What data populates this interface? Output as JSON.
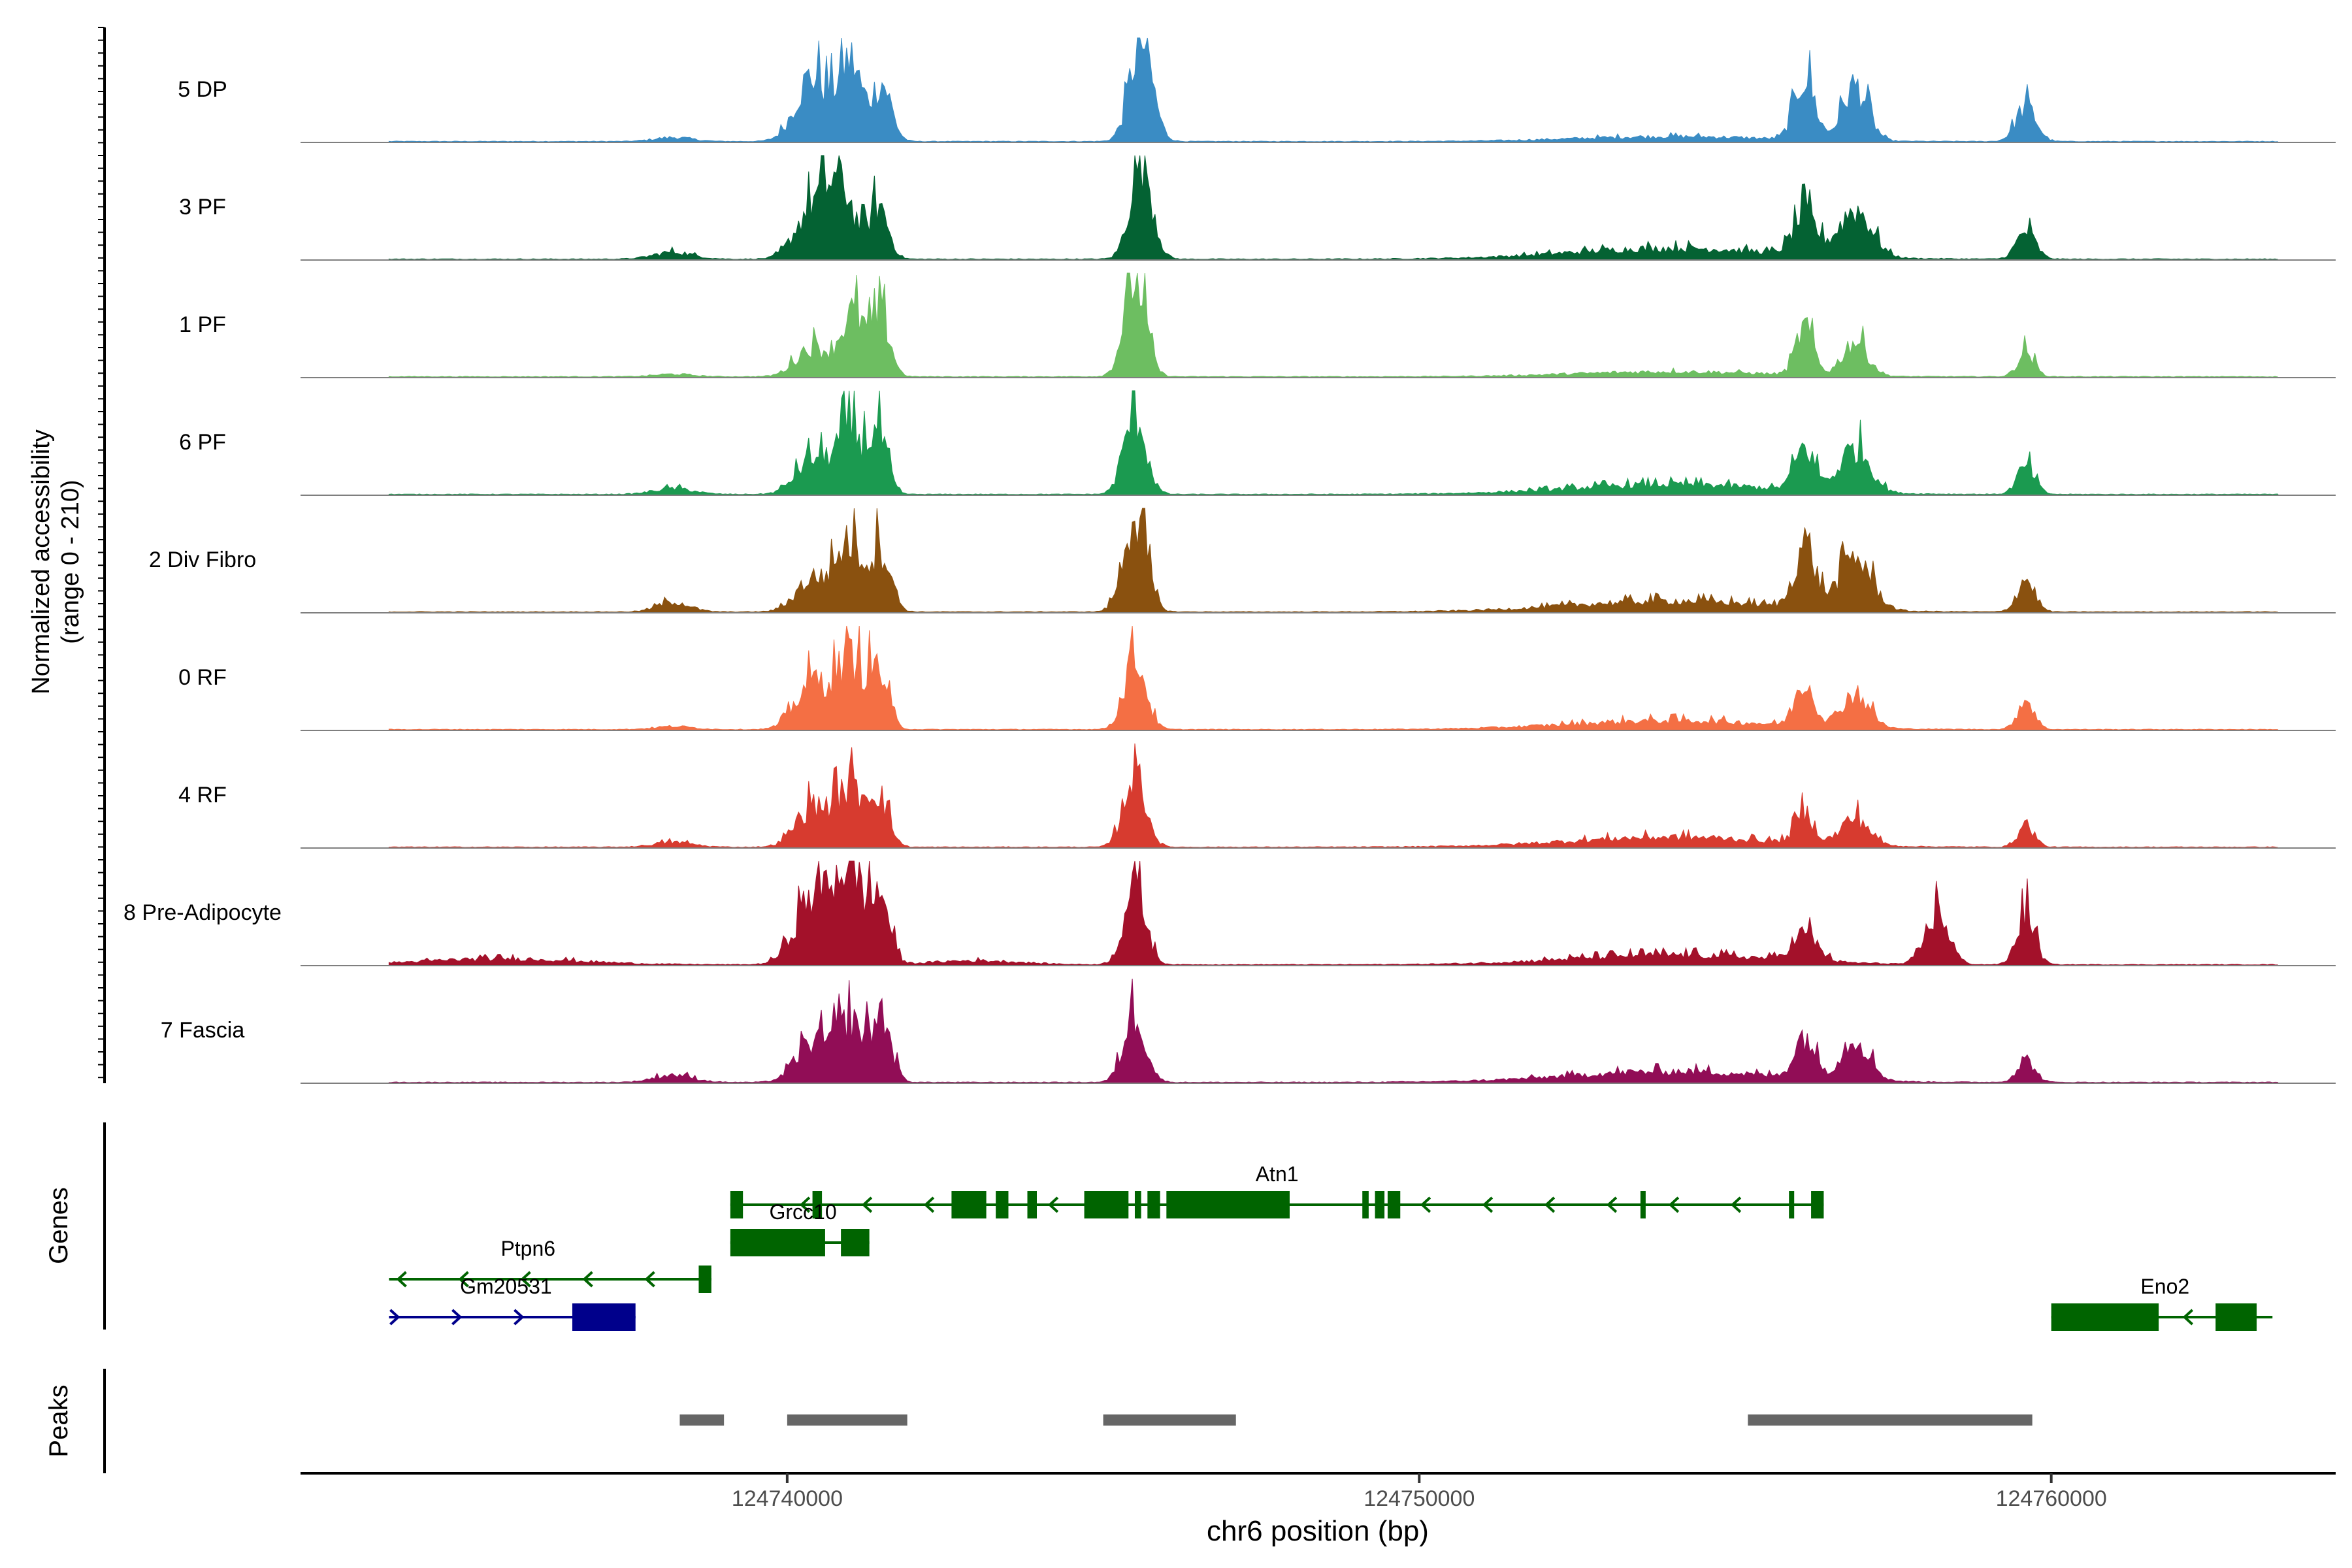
{
  "chart_data": {
    "type": "area",
    "title": "",
    "xlabel": "chr6 position (bp)",
    "ylabel_line1": "Normalized accessibility",
    "ylabel_line2": "(range 0 - 210)",
    "ylim": [
      0,
      210
    ],
    "xlim": [
      124732300,
      124764500
    ],
    "x_ticks": [
      124740000,
      124750000,
      124760000
    ],
    "x_tick_labels": [
      "124740000",
      "124750000",
      "124760000"
    ],
    "series": [
      {
        "name": "5 DP",
        "color": "#3A8CC4",
        "peaks": [
          [
            124740400,
            130,
            260
          ],
          [
            124741000,
            155,
            180
          ],
          [
            124741500,
            115,
            150
          ],
          [
            124745600,
            200,
            180
          ],
          [
            124756100,
            125,
            160
          ],
          [
            124756900,
            110,
            200
          ],
          [
            124759600,
            70,
            160
          ]
        ],
        "background": [
          [
            124738200,
            8,
            300
          ],
          [
            124754000,
            10,
            1500
          ]
        ]
      },
      {
        "name": "3 PF",
        "color": "#046233",
        "peaks": [
          [
            124740400,
            100,
            260
          ],
          [
            124740850,
            135,
            220
          ],
          [
            124741450,
            105,
            150
          ],
          [
            124745600,
            205,
            170
          ],
          [
            124756100,
            80,
            180
          ],
          [
            124756900,
            95,
            260
          ],
          [
            124759600,
            55,
            150
          ]
        ],
        "background": [
          [
            124738200,
            14,
            300
          ],
          [
            124754000,
            22,
            1600
          ]
        ]
      },
      {
        "name": "1 PF",
        "color": "#6DBE61",
        "peaks": [
          [
            124740400,
            60,
            260
          ],
          [
            124741050,
            125,
            200
          ],
          [
            124741500,
            110,
            140
          ],
          [
            124745500,
            200,
            170
          ],
          [
            124756100,
            95,
            140
          ],
          [
            124756900,
            70,
            200
          ],
          [
            124759600,
            50,
            130
          ]
        ],
        "background": [
          [
            124738200,
            5,
            300
          ],
          [
            124754000,
            10,
            1500
          ]
        ]
      },
      {
        "name": "6 PF",
        "color": "#1B9A50",
        "peaks": [
          [
            124740400,
            70,
            260
          ],
          [
            124741000,
            125,
            220
          ],
          [
            124741450,
            110,
            140
          ],
          [
            124745500,
            165,
            170
          ],
          [
            124756100,
            85,
            160
          ],
          [
            124756900,
            90,
            240
          ],
          [
            124759600,
            55,
            140
          ]
        ],
        "background": [
          [
            124738200,
            12,
            300
          ],
          [
            124754000,
            20,
            1600
          ]
        ]
      },
      {
        "name": "2 Div Fibro",
        "color": "#8A510F",
        "peaks": [
          [
            124740400,
            65,
            260
          ],
          [
            124741000,
            140,
            220
          ],
          [
            124741500,
            120,
            150
          ],
          [
            124745500,
            195,
            180
          ],
          [
            124756100,
            130,
            160
          ],
          [
            124756900,
            105,
            260
          ],
          [
            124759600,
            65,
            140
          ]
        ],
        "background": [
          [
            124738200,
            20,
            250
          ],
          [
            124754000,
            22,
            1600
          ]
        ]
      },
      {
        "name": "0 RF",
        "color": "#F46F44",
        "peaks": [
          [
            124740400,
            95,
            260
          ],
          [
            124741000,
            140,
            220
          ],
          [
            124741450,
            105,
            150
          ],
          [
            124745500,
            145,
            170
          ],
          [
            124756100,
            90,
            150
          ],
          [
            124756900,
            70,
            220
          ],
          [
            124759600,
            60,
            130
          ]
        ],
        "background": [
          [
            124738200,
            6,
            300
          ],
          [
            124754000,
            18,
            1600
          ]
        ]
      },
      {
        "name": "4 RF",
        "color": "#D73B2F",
        "peaks": [
          [
            124740400,
            80,
            260
          ],
          [
            124741000,
            115,
            230
          ],
          [
            124741450,
            95,
            160
          ],
          [
            124745500,
            155,
            170
          ],
          [
            124756100,
            60,
            150
          ],
          [
            124756900,
            55,
            220
          ],
          [
            124759600,
            45,
            130
          ]
        ],
        "background": [
          [
            124738200,
            10,
            300
          ],
          [
            124754000,
            20,
            1600
          ]
        ]
      },
      {
        "name": "8 Pre-Adipocyte",
        "color": "#A3112A",
        "peaks": [
          [
            124740400,
            130,
            280
          ],
          [
            124741000,
            190,
            260
          ],
          [
            124741500,
            110,
            140
          ],
          [
            124745500,
            160,
            170
          ],
          [
            124756100,
            55,
            200
          ],
          [
            124758200,
            105,
            180
          ],
          [
            124759600,
            105,
            140
          ]
        ],
        "background": [
          [
            124735500,
            12,
            1200
          ],
          [
            124743000,
            8,
            700
          ],
          [
            124754000,
            20,
            1600
          ]
        ]
      },
      {
        "name": "7 Fascia",
        "color": "#910D56",
        "peaks": [
          [
            124740400,
            80,
            260
          ],
          [
            124741000,
            120,
            230
          ],
          [
            124741500,
            125,
            150
          ],
          [
            124745500,
            140,
            170
          ],
          [
            124756100,
            85,
            160
          ],
          [
            124756900,
            85,
            220
          ],
          [
            124759600,
            45,
            140
          ]
        ],
        "background": [
          [
            124738200,
            15,
            300
          ],
          [
            124754000,
            22,
            1600
          ]
        ]
      }
    ],
    "genes": {
      "title": "Genes",
      "items": [
        {
          "name": "Atn1",
          "strand": "-",
          "color": "#006400",
          "start": 124739100,
          "end": 124756400,
          "exons": [
            [
              124739100,
              124739300
            ],
            [
              124740400,
              124740550
            ],
            [
              124742600,
              124743150
            ],
            [
              124743300,
              124743500
            ],
            [
              124743800,
              124743950
            ],
            [
              124744700,
              124745400
            ],
            [
              124745500,
              124745600
            ],
            [
              124745700,
              124745900
            ],
            [
              124746000,
              124747950
            ],
            [
              124749100,
              124749200
            ],
            [
              124749300,
              124749450
            ],
            [
              124749500,
              124749700
            ],
            [
              124753500,
              124753580
            ],
            [
              124755850,
              124755920
            ],
            [
              124756200,
              124756400
            ]
          ]
        },
        {
          "name": "Grcc10",
          "strand": "+",
          "color": "#006400",
          "start": 124739100,
          "end": 124741300,
          "exons": [
            [
              124739100,
              124740600
            ],
            [
              124740850,
              124741300
            ]
          ]
        },
        {
          "name": "Ptpn6",
          "strand": "-",
          "color": "#006400",
          "start": 124733700,
          "end": 124738800,
          "exons": [
            [
              124738600,
              124738800
            ]
          ]
        },
        {
          "name": "Gm20531",
          "strand": "+",
          "color": "#00008B",
          "start": 124733700,
          "end": 124737600,
          "exons": [
            [
              124736600,
              124737600
            ]
          ]
        },
        {
          "name": "Eno2",
          "strand": "-",
          "color": "#006400",
          "start": 124760000,
          "end": 124763500,
          "exons": [
            [
              124760000,
              124761700
            ],
            [
              124762600,
              124763250
            ]
          ]
        }
      ]
    },
    "peaks_track": {
      "title": "Peaks",
      "color": "#666666",
      "regions": [
        [
          124738300,
          124739000
        ],
        [
          124740000,
          124741900
        ],
        [
          124745000,
          124747100
        ],
        [
          124755200,
          124759700
        ]
      ]
    }
  }
}
